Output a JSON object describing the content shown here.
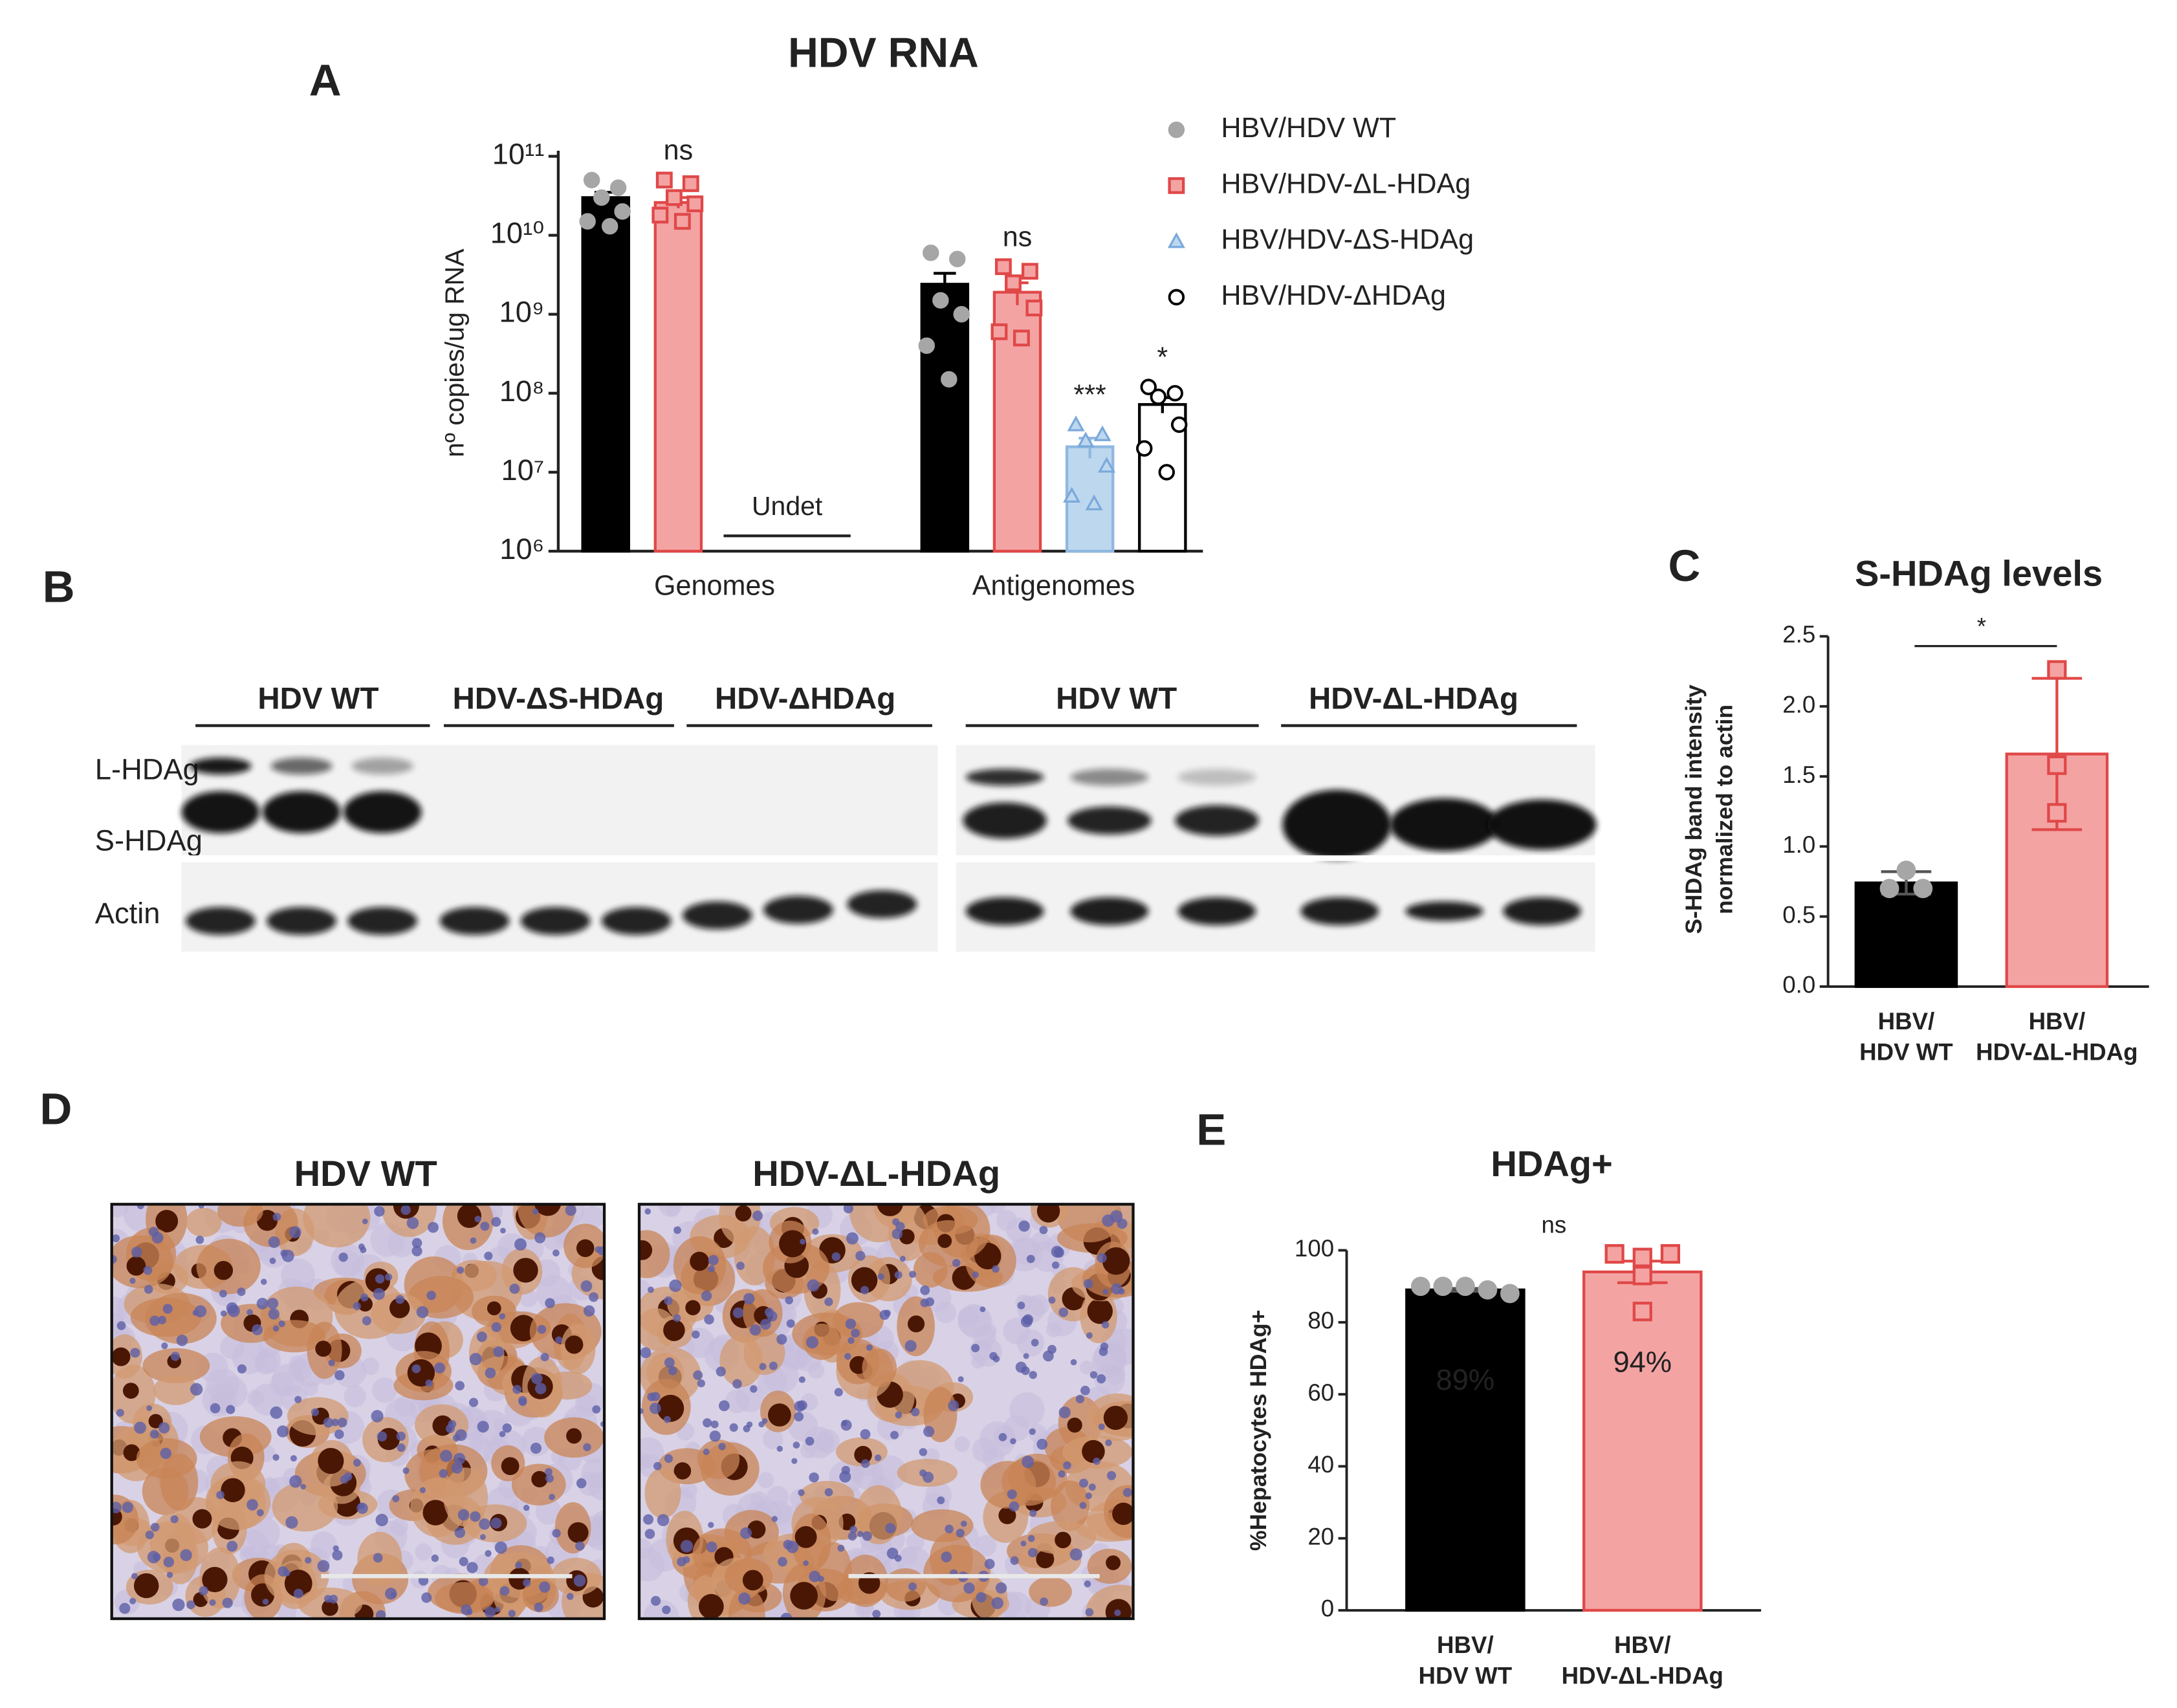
{
  "panel_labels": [
    "A",
    "B",
    "C",
    "D",
    "E"
  ],
  "chart_data": [
    {
      "type": "bar",
      "title": "HDV RNA",
      "y_label": "nº copies/ug RNA",
      "log_scale": true,
      "legend": "right",
      "categories": [
        "Genomes",
        "Antigenomes"
      ],
      "undet_label": "Undet",
      "ylim": [
        1000000,
        100000000000
      ],
      "yticks": [
        {
          "value": 1000000,
          "label": "10⁶"
        },
        {
          "value": 10000000,
          "label": "10⁷"
        },
        {
          "value": 100000000,
          "label": "10⁸"
        },
        {
          "value": 1000000000,
          "label": "10⁹"
        },
        {
          "value": 10000000000,
          "label": "10¹⁰"
        },
        {
          "value": 100000000000,
          "label": "10¹¹"
        }
      ],
      "series": [
        {
          "name": "HBV/HDV WT",
          "color": "#000000",
          "edge_color": "#000000",
          "point_color": "#a6a6a6",
          "point_edge_color": "#a6a6a6",
          "marker": "circle",
          "values": [
            30000000000,
            2400000000
          ],
          "errors": [
            5000000000,
            900000000
          ],
          "points": [
            [
              50000000000,
              40000000000,
              30000000000,
              20000000000,
              15000000000,
              13000000000
            ],
            [
              6000000000,
              5000000000,
              1500000000,
              1000000000,
              400000000,
              150000000
            ]
          ],
          "annotations": [
            null,
            null
          ]
        },
        {
          "name": "HBV/HDV-ΔL-HDAg",
          "color": "#f4a3a3",
          "edge_color": "#e04848",
          "point_color": "#f4a3a3",
          "point_edge_color": "#e04848",
          "marker": "square",
          "values": [
            26000000000,
            1900000000
          ],
          "errors": [
            4000000000,
            600000000
          ],
          "points": [
            [
              50000000000,
              45000000000,
              30000000000,
              25000000000,
              18000000000,
              15000000000
            ],
            [
              4000000000,
              3500000000,
              2500000000,
              1200000000,
              600000000,
              500000000
            ]
          ],
          "annotations": [
            "ns",
            "ns"
          ]
        },
        {
          "name": "HBV/HDV-ΔS-HDAg",
          "color": "#bdd7ee",
          "edge_color": "#8fb8e0",
          "point_color": "#bdd7ee",
          "point_edge_color": "#7aa9db",
          "marker": "triangle",
          "values": [
            null,
            21000000
          ],
          "errors": [
            null,
            6000000
          ],
          "points": [
            [],
            [
              40000000,
              30000000,
              25000000,
              12000000,
              5000000,
              4000000
            ]
          ],
          "annotations": [
            null,
            "***"
          ]
        },
        {
          "name": "HBV/HDV-ΔHDAg",
          "color": "#ffffff",
          "edge_color": "#000000",
          "point_color": "#ffffff",
          "point_edge_color": "#000000",
          "marker": "circle",
          "values": [
            null,
            72000000
          ],
          "errors": [
            null,
            16000000
          ],
          "points": [
            [],
            [
              120000000,
              100000000,
              90000000,
              40000000,
              20000000,
              10000000
            ]
          ],
          "annotations": [
            null,
            "*"
          ]
        }
      ]
    },
    {
      "type": "bar",
      "title": "S-HDAg levels",
      "y_label": [
        "S-HDAg band intensity",
        "normalized to actin"
      ],
      "categories": [
        [
          "HBV/",
          "HDV WT"
        ],
        [
          "HBV/",
          "HDV-ΔL-HDAg"
        ]
      ],
      "values": [
        0.74,
        1.66
      ],
      "errors": [
        0.08,
        0.54
      ],
      "points": [
        [
          0.83,
          0.7,
          0.7
        ],
        [
          2.26,
          1.58,
          1.24
        ]
      ],
      "colors": [
        "#000000",
        "#f4a3a3"
      ],
      "edge_colors": [
        "#000000",
        "#e04848"
      ],
      "point_colors": [
        "#a6a6a6",
        "#f4a3a3"
      ],
      "point_edge_colors": [
        "#a6a6a6",
        "#e04848"
      ],
      "markers": [
        "circle",
        "square"
      ],
      "significance": "*",
      "significance_bracket": true,
      "ylim": [
        0,
        2.5
      ],
      "yticks": [
        {
          "value": 0,
          "label": "0.0"
        },
        0.5,
        {
          "value": 1,
          "label": "1.0"
        },
        1.5,
        {
          "value": 2,
          "label": "2.0"
        },
        2.5
      ]
    },
    {
      "type": "bar",
      "title": "HDAg+",
      "y_label": [
        "%Hepatocytes HDAg+"
      ],
      "categories": [
        [
          "HBV/",
          "HDV WT"
        ],
        [
          "HBV/",
          "HDV-ΔL-HDAg"
        ]
      ],
      "values": [
        89,
        94
      ],
      "value_labels": [
        "89%",
        "94%"
      ],
      "value_label_colors": [
        "#d9d9d9",
        "#c00000"
      ],
      "errors": [
        0.4,
        3
      ],
      "points": [
        [
          90,
          90,
          90,
          89,
          88
        ],
        [
          99,
          98,
          99,
          93,
          83
        ]
      ],
      "colors": [
        "#000000",
        "#f4a3a3"
      ],
      "edge_colors": [
        "#000000",
        "#e04848"
      ],
      "point_colors": [
        "#a6a6a6",
        "#f4a3a3"
      ],
      "point_edge_colors": [
        "#a6a6a6",
        "#e04848"
      ],
      "markers": [
        "circle",
        "square"
      ],
      "significance": "ns",
      "significance_bracket": false,
      "ylim": [
        0,
        100
      ],
      "yticks": [
        0,
        20,
        40,
        60,
        80,
        100
      ]
    }
  ],
  "blot": {
    "group_labels": [
      "HDV WT",
      "HDV-ΔS-HDAg",
      "HDV-ΔHDAg",
      "HDV WT",
      "HDV-ΔL-HDAg"
    ],
    "row_labels": [
      "L-HDAg",
      "S-HDAg",
      "Actin"
    ]
  },
  "histology": {
    "labels": [
      "HDV WT",
      "HDV-ΔL-HDAg"
    ]
  }
}
